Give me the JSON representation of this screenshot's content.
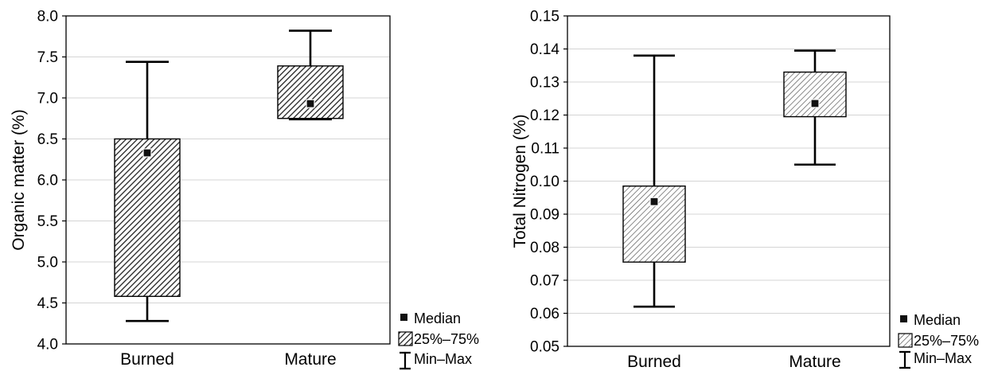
{
  "chart_data": [
    {
      "type": "box",
      "ylabel": "Organic matter (%)",
      "categories": [
        "Burned",
        "Mature"
      ],
      "ylim": [
        4.0,
        8.0
      ],
      "yticks": [
        4.0,
        4.5,
        5.0,
        5.5,
        6.0,
        6.5,
        7.0,
        7.5,
        8.0
      ],
      "ytick_labels": [
        "4.0",
        "4.5",
        "5.0",
        "5.5",
        "6.0",
        "6.5",
        "7.0",
        "7.5",
        "8.0"
      ],
      "grid": true,
      "boxes": [
        {
          "category": "Burned",
          "min": 4.28,
          "q1": 4.58,
          "median": 6.33,
          "q3": 6.5,
          "max": 7.44
        },
        {
          "category": "Mature",
          "min": 6.74,
          "q1": 6.75,
          "median": 6.93,
          "q3": 7.39,
          "max": 7.82
        }
      ],
      "legend": {
        "position": "bottom-right-outside",
        "median": "Median",
        "iqr": "25%–75%",
        "range": "Min–Max"
      }
    },
    {
      "type": "box",
      "ylabel": "Total Nitrogen (%)",
      "categories": [
        "Burned",
        "Mature"
      ],
      "ylim": [
        0.05,
        0.15
      ],
      "yticks": [
        0.05,
        0.06,
        0.07,
        0.08,
        0.09,
        0.1,
        0.11,
        0.12,
        0.13,
        0.14,
        0.15
      ],
      "ytick_labels": [
        "0.05",
        "0.06",
        "0.07",
        "0.08",
        "0.09",
        "0.10",
        "0.11",
        "0.12",
        "0.13",
        "0.14",
        "0.15"
      ],
      "grid": true,
      "boxes": [
        {
          "category": "Burned",
          "min": 0.062,
          "q1": 0.0755,
          "median": 0.0938,
          "q3": 0.0985,
          "max": 0.138
        },
        {
          "category": "Mature",
          "min": 0.105,
          "q1": 0.1195,
          "median": 0.1235,
          "q3": 0.133,
          "max": 0.1395
        }
      ],
      "legend": {
        "position": "bottom-right-outside",
        "median": "Median",
        "iqr": "25%–75%",
        "range": "Min–Max"
      }
    }
  ]
}
